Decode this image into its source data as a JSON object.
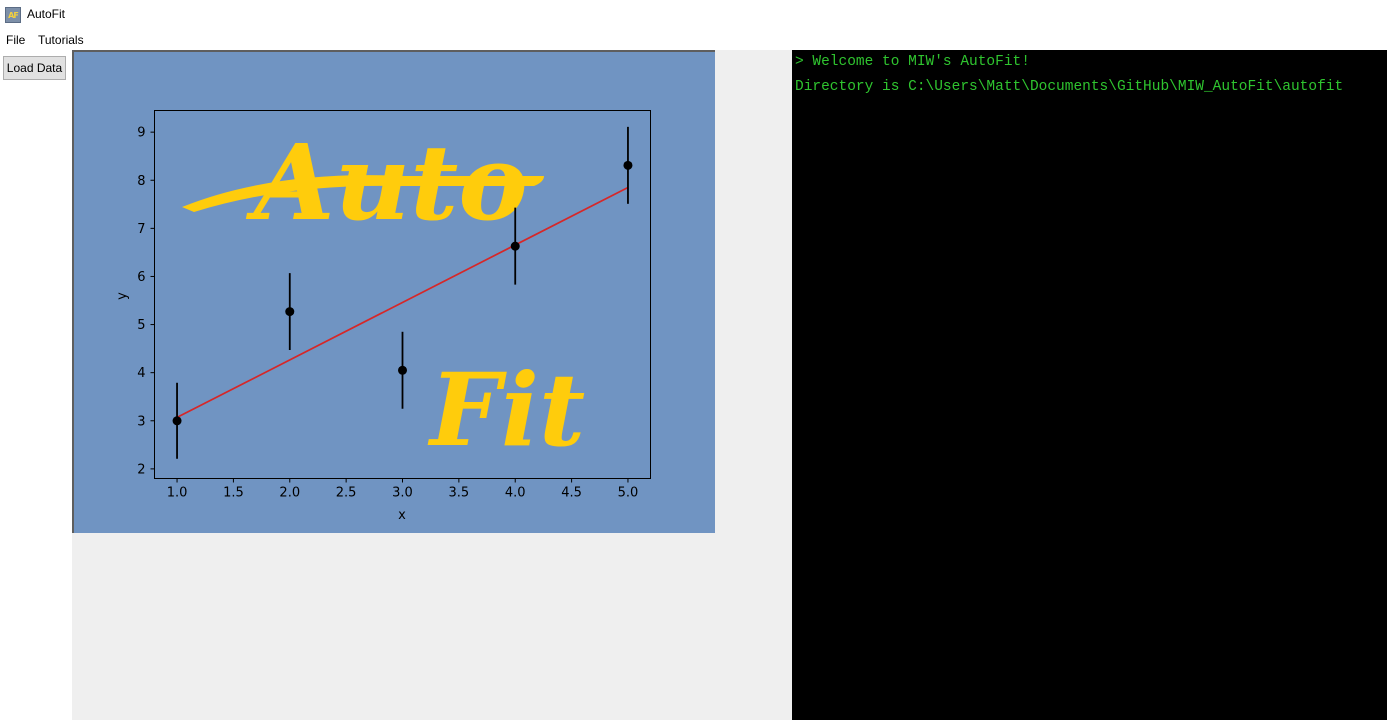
{
  "window": {
    "icon_text": "AF",
    "title": "AutoFit"
  },
  "menu": {
    "items": [
      "File",
      "Tutorials"
    ]
  },
  "toolbar": {
    "load_label": "Load Data"
  },
  "plot": {
    "logo_word_1": "Auto",
    "logo_word_2": "Fit"
  },
  "console": {
    "lines": [
      "> Welcome to MIW's AutoFit!",
      "Directory is C:\\Users\\Matt\\Documents\\GitHub\\MIW_AutoFit\\autofit"
    ]
  },
  "colors": {
    "plot_background": "#7094c2",
    "fit_line": "#d62728",
    "logo": "#ffcc0c",
    "console_text": "#2fc42f",
    "console_background": "#000000"
  },
  "chart_data": {
    "type": "scatter",
    "xlabel": "x",
    "ylabel": "y",
    "xlim": [
      0.8,
      5.2
    ],
    "ylim": [
      1.8,
      9.45
    ],
    "xticks": [
      1.0,
      1.5,
      2.0,
      2.5,
      3.0,
      3.5,
      4.0,
      4.5,
      5.0
    ],
    "yticks": [
      2,
      3,
      4,
      5,
      6,
      7,
      8,
      9
    ],
    "xtick_labels": [
      "1.0",
      "1.5",
      "2.0",
      "2.5",
      "3.0",
      "3.5",
      "4.0",
      "4.5",
      "5.0"
    ],
    "ytick_labels": [
      "2",
      "3",
      "4",
      "5",
      "6",
      "7",
      "8",
      "9"
    ],
    "grid": false,
    "series": [
      {
        "kind": "points_with_error_bars",
        "x": [
          1.0,
          2.0,
          3.0,
          4.0,
          5.0
        ],
        "y": [
          3.0,
          5.27,
          4.05,
          6.63,
          8.31
        ],
        "yerr": [
          0.79,
          0.8,
          0.8,
          0.8,
          0.8
        ],
        "color": "#000000"
      },
      {
        "kind": "fit_line",
        "x": [
          1.0,
          5.0
        ],
        "y": [
          3.07,
          7.85
        ],
        "color": "#d62728"
      }
    ]
  }
}
